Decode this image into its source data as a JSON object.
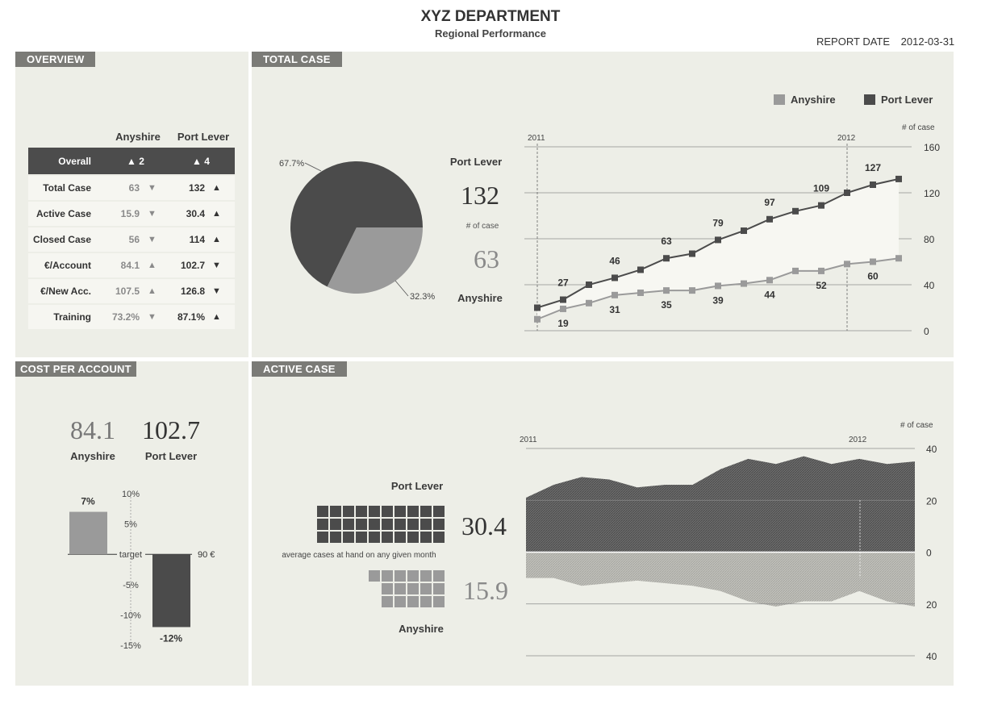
{
  "header": {
    "title": "XYZ DEPARTMENT",
    "subtitle": "Regional Performance",
    "report_date_label": "REPORT DATE",
    "report_date": "2012-03-31"
  },
  "panels": {
    "overview": "OVERVIEW",
    "total_case": "TOTAL CASE",
    "cost_per_account": "COST PER ACCOUNT",
    "active_case": "ACTIVE CASE"
  },
  "overview": {
    "col_a": "Anyshire",
    "col_p": "Port Lever",
    "overall": {
      "label": "Overall",
      "a": "▲ 2",
      "p": "▲ 4"
    },
    "rows": [
      {
        "label": "Total Case",
        "a": "63",
        "a_arrow": "▼",
        "p": "132",
        "p_arrow": "▲"
      },
      {
        "label": "Active Case",
        "a": "15.9",
        "a_arrow": "▼",
        "p": "30.4",
        "p_arrow": "▲"
      },
      {
        "label": "Closed Case",
        "a": "56",
        "a_arrow": "▼",
        "p": "114",
        "p_arrow": "▲"
      },
      {
        "label": "€/Account",
        "a": "84.1",
        "a_arrow": "▲",
        "p": "102.7",
        "p_arrow": "▼"
      },
      {
        "label": "€/New Acc.",
        "a": "107.5",
        "a_arrow": "▲",
        "p": "126.8",
        "p_arrow": "▼"
      },
      {
        "label": "Training",
        "a": "73.2%",
        "a_arrow": "▼",
        "p": "87.1%",
        "p_arrow": "▲"
      }
    ]
  },
  "total_case": {
    "legend_a": "Anyshire",
    "legend_p": "Port Lever",
    "port_lever_label": "Port Lever",
    "port_lever_value": "132",
    "unit": "# of case",
    "anyshire_value": "63",
    "anyshire_label": "Anyshire",
    "pie_p_label": "67.7%",
    "pie_a_label": "32.3%",
    "axis_unit": "# of case",
    "year_2011": "2011",
    "year_2012": "2012",
    "yticks": [
      "160",
      "120",
      "80",
      "40",
      "0"
    ]
  },
  "cost_per_account": {
    "a_value": "84.1",
    "p_value": "102.7",
    "a_label": "Anyshire",
    "p_label": "Port Lever",
    "a_pct": "7%",
    "p_pct": "-12%",
    "ticks": [
      "10%",
      "5%",
      "target",
      "-5%",
      "-10%",
      "-15%"
    ],
    "target_value": "90 €"
  },
  "active_case": {
    "port_lever_label": "Port Lever",
    "port_lever_value": "30.4",
    "caption": "average cases at hand on any given month",
    "anyshire_value": "15.9",
    "anyshire_label": "Anyshire",
    "axis_unit": "# of case",
    "year_2011": "2011",
    "year_2012": "2012",
    "yticks": [
      "40",
      "20",
      "0",
      "20",
      "40"
    ]
  },
  "colors": {
    "dark": "#4b4b4b",
    "light": "#9a9a9a",
    "panel": "#edeee7",
    "title_bar": "#7b7b77"
  },
  "chart_data": [
    {
      "type": "pie",
      "labels": [
        "Port Lever",
        "Anyshire"
      ],
      "values": [
        67.7,
        32.3
      ]
    },
    {
      "type": "line",
      "x": [
        "2011-01",
        "2011-02",
        "2011-03",
        "2011-04",
        "2011-05",
        "2011-06",
        "2011-07",
        "2011-08",
        "2011-09",
        "2011-10",
        "2011-11",
        "2011-12",
        "2012-01",
        "2012-02",
        "2012-03"
      ],
      "series": [
        {
          "name": "Port Lever",
          "values": [
            20,
            27,
            40,
            46,
            53,
            63,
            67,
            79,
            87,
            97,
            104,
            109,
            120,
            127,
            132
          ]
        },
        {
          "name": "Anyshire",
          "values": [
            10,
            19,
            24,
            31,
            33,
            35,
            35,
            39,
            41,
            44,
            52,
            52,
            58,
            60,
            63
          ]
        }
      ],
      "data_labels": {
        "Port Lever": [
          "",
          "27",
          "",
          "46",
          "",
          "63",
          "",
          "79",
          "",
          "97",
          "",
          "109",
          "",
          "127",
          ""
        ],
        "Anyshire": [
          "",
          "19",
          "",
          "31",
          "",
          "35",
          "",
          "39",
          "",
          "44",
          "",
          "52",
          "",
          "60",
          ""
        ]
      },
      "ylim": [
        0,
        160
      ],
      "yticks": [
        0,
        40,
        80,
        120,
        160
      ]
    },
    {
      "type": "bar",
      "categories": [
        "Anyshire",
        "Port Lever"
      ],
      "values": [
        7,
        -12
      ],
      "ylim": [
        -15,
        10
      ]
    },
    {
      "type": "area",
      "series": [
        {
          "name": "Port Lever",
          "values": [
            21,
            26,
            29,
            28,
            25,
            26,
            26,
            32,
            36,
            34,
            37,
            34,
            36,
            34,
            35
          ]
        },
        {
          "name": "Anyshire",
          "values": [
            -10,
            -10,
            -13,
            -12,
            -11,
            -12,
            -13,
            -15,
            -19,
            -21,
            -19,
            -19,
            -15,
            -19,
            -21
          ]
        }
      ],
      "ylim": [
        -40,
        40
      ]
    }
  ]
}
